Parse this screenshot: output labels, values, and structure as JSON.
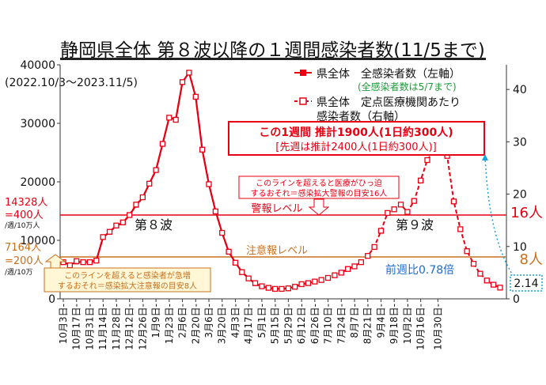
{
  "title": "静岡県全体 第８波以降の１週間感染者数(11/5まで)",
  "period": "(2022.10/3～2023.11/5)",
  "colors": {
    "red": "#e60012",
    "orange": "#c8701e",
    "blue": "#1a6ccc",
    "cyan": "#1aa3e0",
    "green": "#1f9a3a",
    "yellow_bg": "#fff7d6"
  },
  "legend": {
    "solid_label": "県全体　全感染者数（左軸）",
    "solid_note": "(全感染者数は5/7まで)",
    "dashed_label_1": "県全体　定点医療機関あたり",
    "dashed_label_2": "感染者数（右軸）"
  },
  "callout": {
    "line1": "この1週間 推計1900人(1日約300人)",
    "line2": "[先週は推計2400人(1日約300人)]"
  },
  "warning": {
    "box_line1": "このラインを超えると医療がひっ迫",
    "box_line2": "するおそれ＝感染拡大警報の目安16人",
    "level_label": "警報レベル",
    "right_label": "16人",
    "left_line1": "14328人",
    "left_line2": "=400人",
    "left_line3": "/週/10万人"
  },
  "caution": {
    "box_line1": "このラインを超えると感染者が急増",
    "box_line2": "するおそれ＝感染拡大注意報の目安8人",
    "level_label": "注意報レベル",
    "right_label": "8人",
    "left_line1": "7164人",
    "left_line2": "=200人",
    "left_line3": "/週/10万"
  },
  "wave8_label": "第８波",
  "wave9_label": "第９波",
  "ratio_text": "前週比0.78倍",
  "latest_value_label": "2.14",
  "chart_data": {
    "type": "line",
    "x_labels": [
      "10月3日",
      "10月17日",
      "10月31日",
      "11月14日",
      "11月28日",
      "12月12日",
      "12月26日",
      "1月9日",
      "1月23日",
      "2月6日",
      "2月20日",
      "3月6日",
      "3月20日",
      "4月3日",
      "4月17日",
      "5月1日",
      "5月15日",
      "5月29日",
      "6月12日",
      "6月26日",
      "7月10日",
      "7月24日",
      "8月7日",
      "8月21日",
      "9月4日",
      "9月18日",
      "10月2日",
      "10月16日",
      "10月30日"
    ],
    "left_axis": {
      "min": 0,
      "max": 40000,
      "ticks": [
        0,
        10000,
        20000,
        30000,
        40000
      ]
    },
    "right_axis": {
      "min": 0,
      "max": 44.7,
      "ticks": [
        0,
        10,
        20,
        30,
        40
      ]
    },
    "thresholds": [
      {
        "name": "警報レベル",
        "left_value": 14328,
        "right_value": 16
      },
      {
        "name": "注意報レベル",
        "left_value": 7164,
        "right_value": 8
      }
    ],
    "series": [
      {
        "name": "県全体　全感染者数（左軸）",
        "axis": "left",
        "start_week": 0,
        "values": [
          6300,
          5800,
          6300,
          6300,
          6300,
          6600,
          10500,
          11400,
          12500,
          13000,
          14300,
          16000,
          17300,
          19700,
          22000,
          26500,
          31000,
          30700,
          37000,
          38700,
          34500,
          25500,
          19600,
          15000,
          11300,
          8000,
          6200,
          4600,
          3500,
          2600,
          2100,
          1900,
          1700,
          1700,
          1800,
          2100,
          2500
        ]
      },
      {
        "name": "県全体　定点医療機関あたり感染者数（右軸）",
        "axis": "right",
        "start_week": 0,
        "values": [
          7.0,
          6.4,
          7.2,
          7.0,
          7.0,
          7.3,
          11.8,
          12.8,
          14.0,
          14.6,
          16.0,
          18.0,
          19.4,
          22.0,
          24.6,
          29.6,
          34.6,
          34.2,
          41.4,
          43.2,
          38.6,
          28.5,
          21.9,
          16.7,
          12.6,
          9.0,
          6.9,
          5.1,
          3.9,
          3.0,
          2.4,
          2.1,
          1.9,
          1.9,
          2.0,
          2.3,
          2.8,
          3.0,
          3.3,
          3.6,
          4.0,
          4.5,
          5.0,
          5.7,
          6.2,
          7.0,
          8.2,
          9.9,
          13.0,
          16.4,
          17.1,
          18.0,
          16.6,
          18.7,
          22.6,
          26.5,
          28.3,
          30.3,
          27.3,
          18.6,
          13.3,
          9.1,
          6.7,
          4.8,
          3.5,
          2.7,
          2.14
        ]
      }
    ]
  }
}
